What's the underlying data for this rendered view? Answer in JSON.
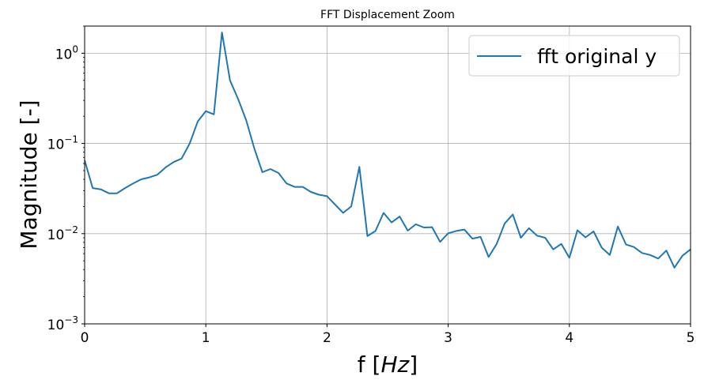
{
  "chart_data": {
    "type": "line",
    "title": "FFT Displacement Zoom",
    "xlabel": "f [Hz]",
    "xlabel_parts": {
      "prefix": "f [",
      "unit": "Hz",
      "suffix": "]"
    },
    "ylabel": "Magnitude [-]",
    "xlim": [
      0,
      5
    ],
    "ylim": [
      0.001,
      2.0
    ],
    "yscale": "log",
    "grid": true,
    "legend_position": "top-right",
    "x_ticks": [
      0,
      1,
      2,
      3,
      4,
      5
    ],
    "x_tick_labels": [
      "0",
      "1",
      "2",
      "3",
      "4",
      "5"
    ],
    "y_ticks": [
      0.001,
      0.01,
      0.1,
      1
    ],
    "y_tick_labels": [
      {
        "base": "10",
        "exp": "−3"
      },
      {
        "base": "10",
        "exp": "−2"
      },
      {
        "base": "10",
        "exp": "−1"
      },
      {
        "base": "10",
        "exp": "0"
      }
    ],
    "series": [
      {
        "name": "fft original y",
        "color": "#1f77b4",
        "x": [
          0.0,
          0.0667,
          0.1333,
          0.2,
          0.2667,
          0.3333,
          0.4,
          0.4667,
          0.5333,
          0.6,
          0.6667,
          0.7333,
          0.8,
          0.8667,
          0.9333,
          1.0,
          1.0667,
          1.1333,
          1.2,
          1.2667,
          1.3333,
          1.4,
          1.4667,
          1.5333,
          1.6,
          1.6667,
          1.7333,
          1.8,
          1.8667,
          1.9333,
          2.0,
          2.0667,
          2.1333,
          2.2,
          2.2667,
          2.3333,
          2.4,
          2.4667,
          2.5333,
          2.6,
          2.6667,
          2.7333,
          2.8,
          2.8667,
          2.9333,
          3.0,
          3.0667,
          3.1333,
          3.2,
          3.2667,
          3.3333,
          3.4,
          3.4667,
          3.5333,
          3.6,
          3.6667,
          3.7333,
          3.8,
          3.8667,
          3.9333,
          4.0,
          4.0667,
          4.1333,
          4.2,
          4.2667,
          4.3333,
          4.4,
          4.4667,
          4.5333,
          4.6,
          4.6667,
          4.7333,
          4.8,
          4.8667,
          4.9333,
          5.0
        ],
        "y": [
          0.065,
          0.032,
          0.031,
          0.028,
          0.028,
          0.032,
          0.036,
          0.04,
          0.042,
          0.045,
          0.054,
          0.062,
          0.068,
          0.1,
          0.175,
          0.228,
          0.21,
          1.7,
          0.5,
          0.31,
          0.18,
          0.088,
          0.048,
          0.052,
          0.047,
          0.036,
          0.033,
          0.033,
          0.029,
          0.027,
          0.026,
          0.021,
          0.017,
          0.02,
          0.055,
          0.0094,
          0.0107,
          0.017,
          0.0133,
          0.0155,
          0.0108,
          0.0127,
          0.0117,
          0.0118,
          0.0081,
          0.0101,
          0.0107,
          0.0111,
          0.0088,
          0.0092,
          0.0055,
          0.0077,
          0.013,
          0.0163,
          0.009,
          0.0115,
          0.0095,
          0.009,
          0.0067,
          0.0077,
          0.0054,
          0.0109,
          0.0091,
          0.0106,
          0.007,
          0.0058,
          0.012,
          0.0076,
          0.0071,
          0.0061,
          0.0058,
          0.0053,
          0.0065,
          0.0042,
          0.0057,
          0.0067
        ]
      }
    ]
  }
}
